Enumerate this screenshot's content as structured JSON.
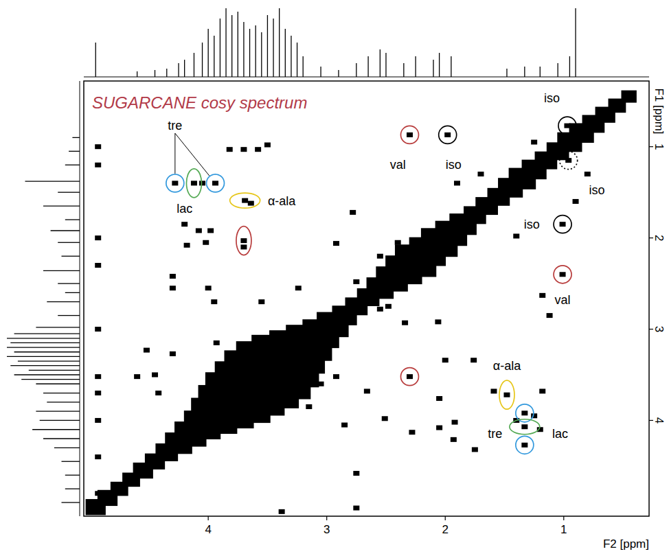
{
  "chart_data": {
    "type": "scatter",
    "title": "SUGARCANE cosy spectrum",
    "x_label": "F2 [ppm]",
    "y_label": "F1 [ppm]",
    "xlim": [
      5.05,
      0.28
    ],
    "ylim": [
      0.28,
      5.05
    ],
    "xticks": [
      4,
      3,
      2,
      1
    ],
    "yticks": [
      1,
      2,
      3,
      4
    ],
    "grid": false,
    "color": "#000000",
    "marker": "square",
    "x": [
      4.28,
      3.94,
      4.12,
      4.05,
      3.69,
      3.64,
      2.3,
      1.98,
      0.97,
      0.96,
      1.01,
      1.01,
      3.7,
      3.7,
      3.82,
      3.7,
      3.58,
      3.5,
      4.2,
      4.08,
      4.02,
      4.18,
      3.98,
      4.3,
      4.3,
      4.0,
      3.95,
      3.55,
      3.24,
      3.93,
      4.52,
      4.3,
      2.92,
      2.75,
      2.78,
      4.93,
      4.93,
      4.93,
      4.93,
      4.93,
      4.93,
      4.93,
      4.93,
      4.93,
      4.93,
      4.6,
      4.45,
      4.42,
      2.55,
      2.4,
      1.9,
      1.7,
      1.25,
      0.9,
      0.8,
      2.3,
      1.48,
      1.33,
      1.33,
      1.33,
      1.4,
      2.92,
      2.66,
      2.05,
      2.0,
      1.59,
      1.18,
      2.51,
      2.28,
      1.93,
      1.75,
      2.75,
      2.75,
      3.38,
      1.76,
      1.12,
      1.18,
      2.06,
      2.48,
      2.34,
      1.4,
      1.92,
      2.05,
      2.55,
      3.05,
      3.15,
      2.85,
      1.25,
      1.2
    ],
    "values": [
      1.4,
      1.4,
      1.4,
      1.4,
      1.59,
      1.62,
      0.87,
      0.87,
      0.77,
      1.15,
      1.85,
      2.4,
      2.03,
      2.1,
      1.03,
      1.03,
      1.03,
      0.98,
      1.85,
      1.92,
      2.05,
      2.08,
      1.92,
      2.42,
      2.55,
      2.55,
      2.7,
      2.7,
      2.55,
      3.15,
      3.23,
      3.27,
      2.06,
      2.48,
      1.72,
      1.0,
      1.2,
      2.0,
      2.3,
      3.0,
      3.52,
      3.7,
      4.0,
      4.4,
      4.8,
      3.52,
      3.5,
      3.7,
      2.2,
      2.05,
      1.4,
      1.3,
      0.95,
      1.6,
      1.3,
      3.52,
      3.72,
      3.92,
      4.27,
      4.07,
      4.0,
      3.52,
      3.68,
      3.76,
      3.34,
      3.68,
      3.68,
      3.98,
      4.13,
      4.21,
      4.32,
      4.58,
      4.96,
      5.0,
      3.34,
      2.85,
      2.63,
      2.92,
      2.75,
      2.93,
      1.98,
      4.02,
      4.08,
      2.78,
      3.6,
      3.85,
      4.05,
      3.95,
      4.1
    ],
    "diagonal": {
      "ppm": [
        0.45,
        0.55,
        0.65,
        0.75,
        0.85,
        0.95,
        1.05,
        1.15,
        1.25,
        1.35,
        1.45,
        1.55,
        1.65,
        1.75,
        1.85,
        1.95,
        2.05,
        2.15,
        2.25,
        2.35,
        2.45,
        2.55,
        2.65,
        2.75,
        2.85,
        2.95,
        3.05,
        3.15,
        3.25,
        3.35,
        3.45,
        3.55,
        3.65,
        3.75,
        3.85,
        3.95,
        4.05,
        4.15,
        4.25,
        4.35,
        4.45,
        4.55,
        4.65,
        4.75,
        4.85,
        4.95
      ],
      "width": [
        0.03,
        0.04,
        0.05,
        0.06,
        0.07,
        0.07,
        0.06,
        0.06,
        0.07,
        0.08,
        0.07,
        0.06,
        0.06,
        0.06,
        0.08,
        0.1,
        0.12,
        0.12,
        0.14,
        0.12,
        0.1,
        0.08,
        0.06,
        0.06,
        0.07,
        0.1,
        0.12,
        0.16,
        0.2,
        0.25,
        0.28,
        0.28,
        0.26,
        0.24,
        0.2,
        0.16,
        0.12,
        0.1,
        0.08,
        0.06,
        0.05,
        0.05,
        0.04,
        0.04,
        0.05,
        0.05
      ]
    },
    "projection_f2": {
      "x": [
        4.95,
        4.6,
        4.45,
        4.35,
        4.25,
        4.2,
        4.12,
        4.05,
        4.0,
        3.95,
        3.9,
        3.85,
        3.8,
        3.75,
        3.7,
        3.65,
        3.6,
        3.55,
        3.5,
        3.45,
        3.4,
        3.35,
        3.3,
        3.25,
        3.2,
        3.05,
        2.9,
        2.75,
        2.65,
        2.55,
        2.5,
        2.35,
        2.25,
        2.1,
        2.05,
        1.95,
        1.48,
        1.33,
        1.2,
        1.05,
        0.95,
        0.9
      ],
      "values": [
        0.5,
        0.08,
        0.1,
        0.12,
        0.2,
        0.25,
        0.35,
        0.5,
        0.7,
        0.6,
        0.85,
        1.0,
        0.9,
        0.95,
        0.8,
        0.7,
        0.75,
        0.65,
        0.9,
        0.85,
        1.0,
        0.7,
        0.6,
        0.5,
        0.3,
        0.15,
        0.1,
        0.2,
        0.3,
        0.4,
        0.35,
        0.2,
        0.3,
        0.25,
        0.35,
        0.3,
        0.12,
        0.15,
        0.15,
        0.2,
        0.3,
        1.0
      ]
    },
    "projection_f1": {
      "x": [
        0.9,
        1.05,
        1.2,
        1.38,
        1.5,
        1.65,
        1.8,
        1.92,
        2.05,
        2.2,
        2.36,
        2.5,
        2.6,
        2.7,
        2.85,
        2.98,
        3.05,
        3.1,
        3.15,
        3.2,
        3.25,
        3.3,
        3.35,
        3.4,
        3.45,
        3.5,
        3.55,
        3.6,
        3.7,
        3.8,
        3.9,
        4.0,
        4.1,
        4.2,
        4.3,
        4.45,
        4.6,
        4.75,
        4.9
      ],
      "values": [
        0.1,
        0.15,
        0.2,
        0.75,
        0.3,
        0.5,
        0.2,
        0.4,
        0.3,
        0.25,
        0.5,
        0.3,
        0.2,
        0.45,
        0.3,
        0.6,
        0.9,
        1.0,
        0.95,
        1.0,
        0.9,
        1.0,
        0.85,
        0.95,
        0.7,
        0.9,
        0.8,
        0.6,
        0.5,
        0.45,
        0.6,
        0.55,
        0.65,
        0.5,
        0.35,
        0.25,
        0.2,
        0.2,
        0.25
      ]
    },
    "circles": [
      {
        "x": 4.28,
        "y": 1.4,
        "color": "#3399dd",
        "marker": "circle"
      },
      {
        "x": 3.94,
        "y": 1.4,
        "color": "#3399dd",
        "marker": "circle"
      },
      {
        "x": 4.12,
        "y": 1.4,
        "color": "#55aa55",
        "marker": "ellipse"
      },
      {
        "x": 3.69,
        "y": 1.59,
        "color": "#e6c619",
        "marker": "wide-ellipse"
      },
      {
        "x": 2.3,
        "y": 0.87,
        "color": "#b83c3c",
        "marker": "circle"
      },
      {
        "x": 1.98,
        "y": 0.87,
        "color": "#000000",
        "marker": "circle"
      },
      {
        "x": 0.97,
        "y": 0.77,
        "color": "#000000",
        "marker": "circle"
      },
      {
        "x": 0.96,
        "y": 1.15,
        "color": "#000000",
        "marker": "circle",
        "line_style": "dotted"
      },
      {
        "x": 1.01,
        "y": 1.85,
        "color": "#000000",
        "marker": "circle"
      },
      {
        "x": 1.01,
        "y": 2.4,
        "color": "#b83c3c",
        "marker": "circle"
      },
      {
        "x": 3.7,
        "y": 2.03,
        "color": "#b83c3c",
        "marker": "ellipse"
      },
      {
        "x": 2.3,
        "y": 3.52,
        "color": "#b83c3c",
        "marker": "circle"
      },
      {
        "x": 1.48,
        "y": 3.72,
        "color": "#e6c619",
        "marker": "ellipse"
      },
      {
        "x": 1.33,
        "y": 3.92,
        "color": "#3399dd",
        "marker": "circle"
      },
      {
        "x": 1.33,
        "y": 4.27,
        "color": "#3399dd",
        "marker": "circle"
      },
      {
        "x": 1.33,
        "y": 4.07,
        "color": "#55aa55",
        "marker": "wide-ellipse"
      }
    ],
    "labels": [
      {
        "text": "tre",
        "x": 4.28,
        "y": 0.77,
        "line_to": [
          [
            4.28,
            1.4
          ],
          [
            3.94,
            1.4
          ]
        ]
      },
      {
        "text": "lac",
        "x": 4.2,
        "y": 1.68
      },
      {
        "text": "α-ala",
        "x": 3.38,
        "y": 1.6
      },
      {
        "text": "val",
        "x": 2.4,
        "y": 1.2
      },
      {
        "text": "iso",
        "x": 1.93,
        "y": 1.2
      },
      {
        "text": "iso",
        "x": 1.1,
        "y": 0.47
      },
      {
        "text": "iso",
        "x": 0.72,
        "y": 1.48
      },
      {
        "text": "iso",
        "x": 1.27,
        "y": 1.85
      },
      {
        "text": "val",
        "x": 1.01,
        "y": 2.68
      },
      {
        "text": "α-ala",
        "x": 1.48,
        "y": 3.4
      },
      {
        "text": "tre",
        "x": 1.58,
        "y": 4.15
      },
      {
        "text": "lac",
        "x": 1.03,
        "y": 4.15
      }
    ]
  }
}
